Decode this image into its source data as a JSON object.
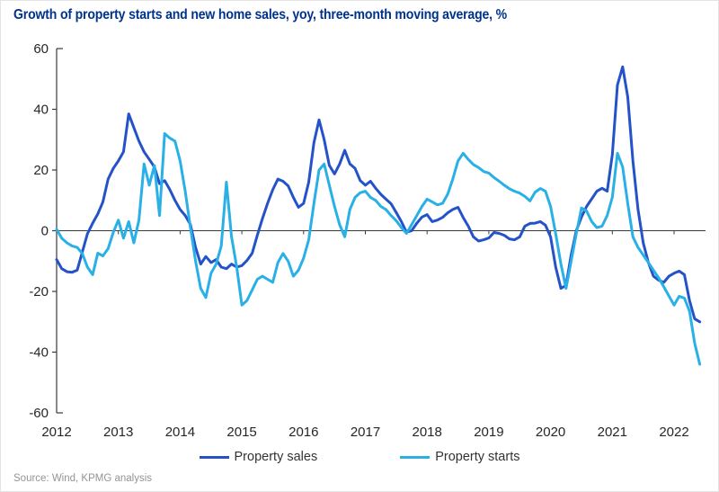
{
  "title": "Growth of property starts and new home sales, yoy, three-month moving average, %",
  "source": "Source: Wind, KPMG analysis",
  "colors": {
    "title_blue": "#00338D",
    "sales_line": "#2452C8",
    "starts_line": "#29B0E6",
    "axis": "#3a3a3a",
    "tick_label": "#262626"
  },
  "legend": [
    {
      "label": "Property sales",
      "color": "#2452C8"
    },
    {
      "label": "Property starts",
      "color": "#29B0E6"
    }
  ],
  "chart_data": {
    "type": "line",
    "title": "Growth of property starts and new home sales, yoy, three-month moving average, %",
    "unit": "%",
    "frequency": "monthly",
    "x_start": "2012-01",
    "x_end": "2022-06",
    "x_tick_labels": [
      "2012",
      "2013",
      "2014",
      "2015",
      "2016",
      "2017",
      "2018",
      "2019",
      "2020",
      "2021",
      "2022"
    ],
    "y_ticks": [
      60,
      40,
      20,
      0,
      -20,
      -40,
      -60
    ],
    "ylim": [
      -60,
      60
    ],
    "grid": false,
    "legend_position": "bottom",
    "series": [
      {
        "name": "Property sales",
        "color": "#2452C8",
        "values": [
          -9.5,
          -12.5,
          -13.5,
          -13.7,
          -13,
          -7,
          -1,
          2.5,
          5.5,
          9.5,
          17,
          20.5,
          23,
          26,
          38.5,
          34,
          29.5,
          26,
          23.5,
          21,
          15.5,
          16.5,
          13.5,
          10,
          7,
          5,
          2,
          -5.5,
          -11,
          -8.5,
          -10.5,
          -9.5,
          -12,
          -12.5,
          -11,
          -12,
          -11.5,
          -9.8,
          -7.4,
          -1.5,
          4,
          9,
          13.5,
          17,
          16.3,
          14.8,
          11,
          7.7,
          9,
          16,
          29,
          36.5,
          30,
          21.5,
          18.7,
          22,
          26.5,
          22,
          20.5,
          16.5,
          15,
          16.3,
          14,
          12,
          10.4,
          8.9,
          6,
          3,
          -0.5,
          0,
          2.5,
          4.5,
          5.3,
          3,
          3.5,
          4.4,
          5.9,
          7,
          7.7,
          4.4,
          1.5,
          -2,
          -3.4,
          -3,
          -2.4,
          -0.6,
          -0.9,
          -1.5,
          -2.7,
          -3,
          -2,
          1.5,
          2.4,
          2.5,
          3,
          1.8,
          -2,
          -12,
          -19,
          -18,
          -8,
          0,
          4.5,
          8,
          10.5,
          13,
          14,
          13,
          25,
          48,
          54,
          44,
          23,
          7,
          -4,
          -10.5,
          -15,
          -16.3,
          -17,
          -15,
          -14,
          -13.3,
          -14.5,
          -23,
          -29,
          -30
        ]
      },
      {
        "name": "Property starts",
        "color": "#29B0E6",
        "values": [
          0.5,
          -2.5,
          -4,
          -5,
          -5.5,
          -7.5,
          -12,
          -14.5,
          -7.4,
          -8.3,
          -5.9,
          -0.6,
          3.5,
          -2.5,
          3,
          -4,
          3.5,
          22,
          15,
          21.5,
          5,
          32,
          30.5,
          29.5,
          23,
          13,
          1,
          -10,
          -19,
          -22,
          -14,
          -11,
          -5,
          16,
          -2,
          -12,
          -24.5,
          -23,
          -19.5,
          -16,
          -15,
          -16,
          -17,
          -10.5,
          -7.5,
          -10,
          -15,
          -13,
          -9,
          -3,
          9,
          20,
          22,
          15,
          8,
          2,
          -2,
          7,
          11,
          12.5,
          13,
          11,
          10,
          8,
          7,
          5,
          3.3,
          1,
          -0.9,
          2,
          5,
          8,
          10.4,
          9.5,
          8.5,
          9,
          12,
          17,
          23,
          25.5,
          23.5,
          21.8,
          20.8,
          19.5,
          19,
          17.5,
          16.3,
          15,
          13.8,
          13,
          12.4,
          11.3,
          9.8,
          12.7,
          13.9,
          13,
          8,
          -1,
          -11,
          -19,
          -10,
          -1,
          7.5,
          6.5,
          3,
          1,
          1.5,
          5,
          11,
          25.5,
          21,
          8.9,
          -2,
          -5.5,
          -8,
          -10.5,
          -13,
          -15.5,
          -18.5,
          -21.5,
          -24.5,
          -21.6,
          -22.2,
          -26.5,
          -37,
          -44
        ]
      }
    ]
  }
}
